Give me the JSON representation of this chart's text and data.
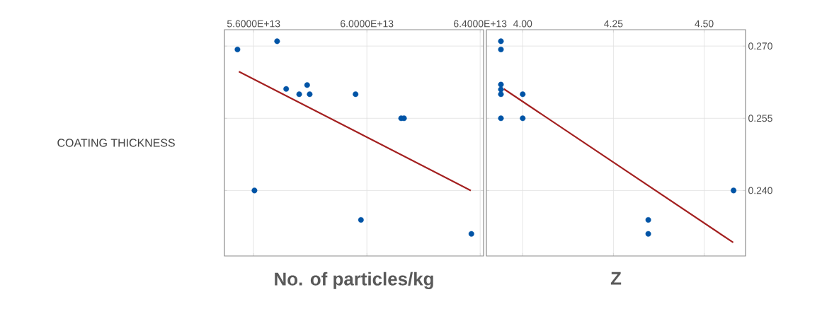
{
  "chart_data": [
    {
      "type": "scatter",
      "xlabel": "No. of particles/kg",
      "ylabel": "COATING THICKNESS",
      "xlim": [
        54970000000000.0,
        64120000000000.0
      ],
      "ylim": [
        0.2264,
        0.2734
      ],
      "xticks": [
        {
          "value": 56000000000000.0,
          "label": "5.6000E+13"
        },
        {
          "value": 60000000000000.0,
          "label": "6.0000E+13"
        },
        {
          "value": 64000000000000.0,
          "label": "6.4000E+13"
        }
      ],
      "yticks": [
        {
          "value": 0.27,
          "label": null
        },
        {
          "value": 0.255,
          "label": null
        },
        {
          "value": 0.24,
          "label": null
        }
      ],
      "tick_labels": "x",
      "grid": true,
      "marker": "circle",
      "series": [
        {
          "color": "#0054a6",
          "x": [
            55430000000000.0,
            56830000000000.0,
            57150000000000.0,
            57610000000000.0,
            57890000000000.0,
            57980000000000.0,
            59600000000000.0,
            61210000000000.0,
            61310000000000.0,
            56030000000000.0,
            59790000000000.0,
            63690000000000.0
          ],
          "values": [
            0.2693,
            0.271,
            0.2611,
            0.26,
            0.2619,
            0.26,
            0.26,
            0.255,
            0.255,
            0.24,
            0.2339,
            0.231
          ]
        },
        {
          "type": "line",
          "color": "#a31f1f",
          "marker": "none",
          "x": [
            55480000000000.0,
            63670000000000.0
          ],
          "values": [
            0.2647,
            0.24
          ]
        }
      ]
    },
    {
      "type": "scatter",
      "xlabel": "Z",
      "xlim": [
        3.9,
        4.614
      ],
      "ylim": [
        0.2264,
        0.2734
      ],
      "xticks": [
        {
          "value": 4.0,
          "label": "4.00"
        },
        4.25,
        {
          "value": 4.5,
          "label": "4.50"
        }
      ],
      "yticks": [
        {
          "value": 0.27,
          "label": "0.270"
        },
        0.255,
        {
          "value": 0.24,
          "label": "0.240"
        }
      ],
      "grid": true,
      "marker": "circle",
      "series": [
        {
          "color": "#0054a6",
          "x": [
            3.94,
            3.94,
            3.94,
            3.94,
            3.94,
            4.0,
            3.94,
            4.0,
            4.346,
            4.346,
            4.581
          ],
          "values": [
            0.271,
            0.2693,
            0.262,
            0.261,
            0.26,
            0.26,
            0.255,
            0.255,
            0.2339,
            0.231,
            0.24
          ]
        },
        {
          "type": "line",
          "color": "#a31f1f",
          "marker": "none",
          "x": [
            3.948,
            4.58
          ],
          "values": [
            0.2611,
            0.2292
          ]
        }
      ]
    }
  ]
}
